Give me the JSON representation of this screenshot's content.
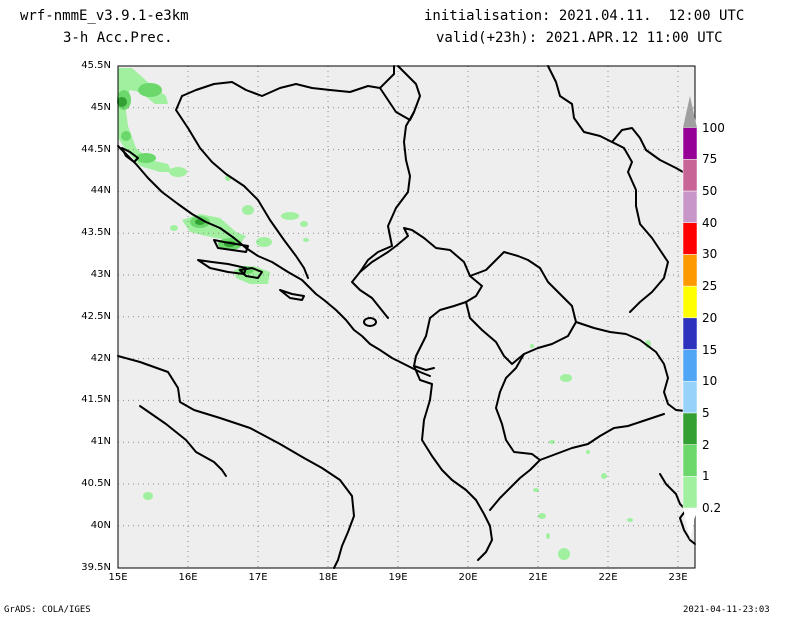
{
  "header": {
    "model": "wrf-nmmE_v3.9.1-e3km",
    "field": "3-h Acc.Prec.",
    "init": "initialisation: 2021.04.11.  12:00 UTC",
    "valid": "valid(+23h): 2021.APR.12 11:00 UTC"
  },
  "axes": {
    "lat_labels": [
      "45.5N",
      "45N",
      "44.5N",
      "44N",
      "43.5N",
      "43N",
      "42.5N",
      "42N",
      "41.5N",
      "41N",
      "40.5N",
      "40N",
      "39.5N"
    ],
    "lon_labels": [
      "15E",
      "16E",
      "17E",
      "18E",
      "19E",
      "20E",
      "21E",
      "22E",
      "23E"
    ]
  },
  "colorbar": {
    "levels": [
      "0.2",
      "1",
      "2",
      "5",
      "10",
      "15",
      "20",
      "25",
      "30",
      "40",
      "50",
      "75",
      "100"
    ],
    "colors": [
      "#a0f0a0",
      "#6cd86c",
      "#32a032",
      "#96d2fa",
      "#50a5f5",
      "#2d32be",
      "#ffff00",
      "#ff9900",
      "#ff0000",
      "#c896c8",
      "#c86496",
      "#960096",
      "#a0a0a0"
    ]
  },
  "map": {
    "background": "#eeeeee",
    "land_color": "#eeeeee"
  },
  "footer": {
    "left": "GrADS: COLA/IGES",
    "right": "2021-04-11-23:03"
  }
}
